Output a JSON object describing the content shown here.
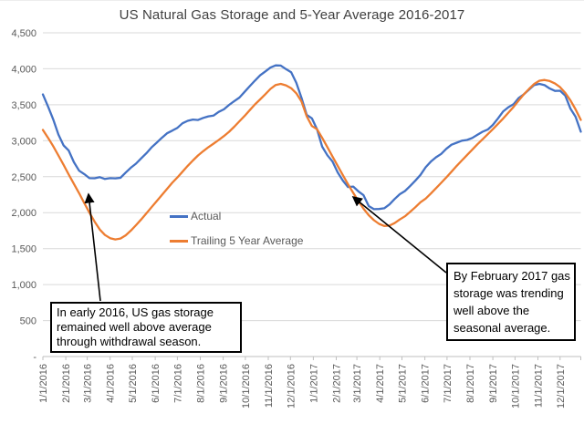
{
  "colors": {
    "actual": "#4472C4",
    "trailing": "#ED7D31",
    "gridline": "#D9D9D9",
    "axis": "#BFBFBF",
    "tick_text": "#595959",
    "title_text": "#404040",
    "annotation_border": "#000000"
  },
  "annotations": {
    "box1": {
      "text": "In early 2016, US gas storage remained well above average through withdrawal season.",
      "lines": [
        "In early 2016, US gas storage",
        "remained well above average",
        "through withdrawal season."
      ]
    },
    "box2": {
      "text": "By February 2017 gas storage was trending well above the seasonal average.",
      "lines": [
        "By February 2017 gas",
        "storage was trending",
        "well above the",
        "seasonal average."
      ]
    }
  },
  "chart_data": {
    "type": "line",
    "title": "US Natural Gas Storage and 5-Year Average 2016-2017",
    "xlabel": "",
    "ylabel": "",
    "grid": true,
    "legend_position": "inside-center-left",
    "ylim": [
      0,
      4500
    ],
    "y_tick_values": [
      0,
      500,
      1000,
      1500,
      2000,
      2500,
      3000,
      3500,
      4000,
      4500
    ],
    "y_tick_labels": [
      "-",
      "500",
      "1,000",
      "1,500",
      "2,000",
      "2,500",
      "3,000",
      "3,500",
      "4,000",
      "4,500"
    ],
    "x_start": "1/1/2016",
    "x_interval_days": 7,
    "x_tick_labels": [
      "1/1/2016",
      "2/1/2016",
      "3/1/2016",
      "4/1/2016",
      "5/1/2016",
      "6/1/2016",
      "7/1/2016",
      "8/1/2016",
      "9/1/2016",
      "10/1/2016",
      "11/1/2016",
      "12/1/2016",
      "1/1/2017",
      "2/1/2017",
      "3/1/2017",
      "4/1/2017",
      "5/1/2017",
      "6/1/2017",
      "7/1/2017",
      "8/1/2017",
      "9/1/2017",
      "10/1/2017",
      "11/1/2017",
      "12/1/2017"
    ],
    "series": [
      {
        "name": "Actual",
        "color": "#4472C4",
        "data_name": "actual-line",
        "values": [
          3643,
          3475,
          3297,
          3086,
          2934,
          2864,
          2701,
          2584,
          2536,
          2479,
          2478,
          2493,
          2468,
          2480,
          2477,
          2484,
          2557,
          2625,
          2681,
          2754,
          2825,
          2907,
          2972,
          3041,
          3103,
          3140,
          3179,
          3243,
          3277,
          3294,
          3288,
          3317,
          3339,
          3350,
          3401,
          3437,
          3499,
          3551,
          3600,
          3680,
          3759,
          3836,
          3909,
          3963,
          4017,
          4047,
          4045,
          3995,
          3953,
          3806,
          3597,
          3360,
          3311,
          3160,
          2917,
          2798,
          2711,
          2559,
          2445,
          2356,
          2363,
          2295,
          2242,
          2092,
          2049,
          2051,
          2061,
          2115,
          2189,
          2256,
          2301,
          2369,
          2444,
          2525,
          2631,
          2709,
          2770,
          2816,
          2888,
          2945,
          2973,
          3001,
          3010,
          3038,
          3082,
          3125,
          3155,
          3220,
          3311,
          3408,
          3466,
          3508,
          3595,
          3646,
          3710,
          3775,
          3790,
          3772,
          3726,
          3693,
          3695,
          3626,
          3444,
          3332,
          3126
        ]
      },
      {
        "name": "Trailing 5 Year Average",
        "color": "#ED7D31",
        "data_name": "trailing-average-line",
        "values": [
          3150,
          3040,
          2925,
          2795,
          2665,
          2530,
          2400,
          2270,
          2135,
          2000,
          1875,
          1765,
          1690,
          1645,
          1628,
          1640,
          1685,
          1750,
          1825,
          1905,
          1990,
          2075,
          2160,
          2245,
          2330,
          2415,
          2490,
          2570,
          2650,
          2725,
          2795,
          2855,
          2910,
          2960,
          3010,
          3065,
          3125,
          3195,
          3270,
          3345,
          3425,
          3505,
          3575,
          3645,
          3720,
          3775,
          3790,
          3770,
          3730,
          3660,
          3545,
          3340,
          3205,
          3160,
          3040,
          2910,
          2780,
          2650,
          2520,
          2395,
          2275,
          2160,
          2055,
          1965,
          1895,
          1845,
          1815,
          1820,
          1855,
          1905,
          1950,
          2010,
          2075,
          2145,
          2195,
          2265,
          2340,
          2415,
          2490,
          2570,
          2650,
          2725,
          2800,
          2875,
          2950,
          3020,
          3090,
          3160,
          3235,
          3310,
          3390,
          3470,
          3560,
          3645,
          3720,
          3790,
          3835,
          3845,
          3830,
          3795,
          3745,
          3665,
          3560,
          3435,
          3290
        ]
      }
    ]
  }
}
